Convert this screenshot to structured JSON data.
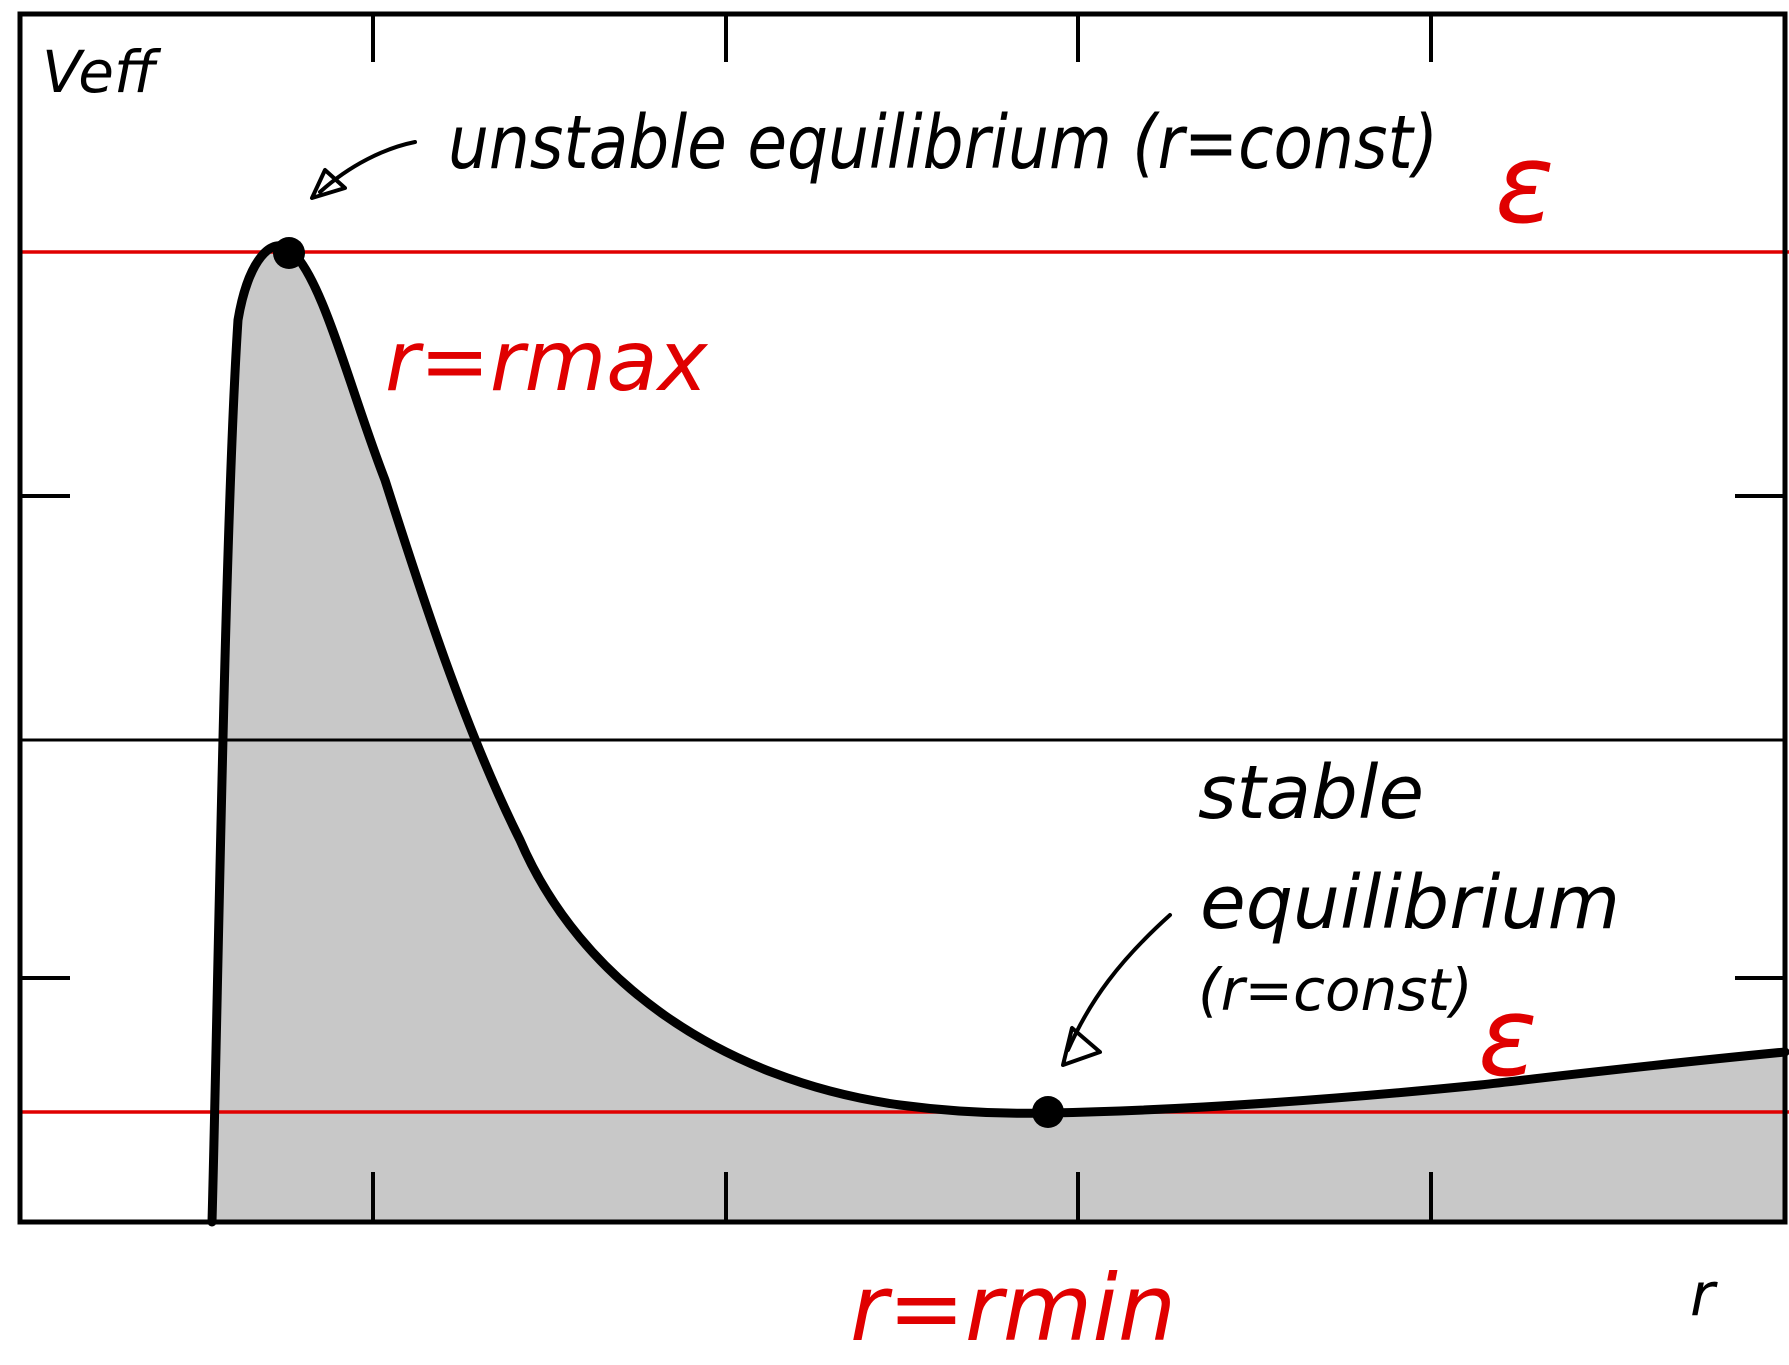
{
  "axis_labels": {
    "y": "Veff",
    "x": "r"
  },
  "annotations": {
    "unstable": "unstable equilibrium (r=const)",
    "stable_line1": "stable",
    "stable_line2": "equilibrium",
    "stable_line3": "(r=const)",
    "r_max": "r=rmax",
    "r_min": "r=rmin",
    "energy_top": "ε",
    "energy_bottom": "ε"
  },
  "colors": {
    "curve": "#000000",
    "fill": "#c8c8c8",
    "energy_lines": "#e00000",
    "frame": "#000000"
  }
}
